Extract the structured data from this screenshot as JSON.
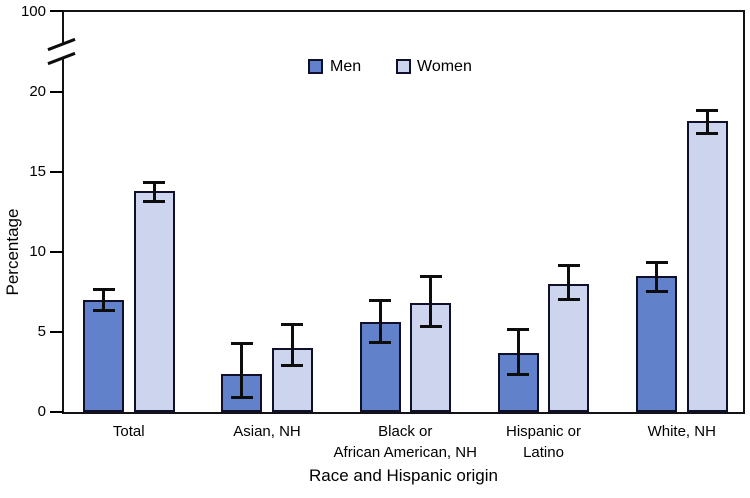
{
  "figure": {
    "y_axis": {
      "title": "Percentage",
      "ticks": [
        "0",
        "5",
        "10",
        "15",
        "20"
      ],
      "break_top_tick": "100"
    },
    "x_axis": {
      "title": "Race and Hispanic origin"
    },
    "legend": {
      "items": [
        "Men",
        "Women"
      ]
    }
  },
  "chart_data": {
    "type": "bar",
    "title": "",
    "xlabel": "Race and Hispanic origin",
    "ylabel": "Percentage",
    "ylim": [
      0,
      20
    ],
    "y_ticks": [
      0,
      5,
      10,
      15,
      20
    ],
    "y_axis_break": {
      "between": [
        20,
        100
      ],
      "top_tick_label": "100"
    },
    "grid": false,
    "legend_position": "top-center",
    "error_bars": true,
    "categories": [
      "Total",
      "Asian, NH",
      "Black or African American, NH",
      "Hispanic or Latino",
      "White, NH"
    ],
    "category_label_lines": [
      [
        "Total"
      ],
      [
        "Asian, NH"
      ],
      [
        "Black or",
        "African American, NH"
      ],
      [
        "Hispanic or",
        "Latino"
      ],
      [
        "White, NH"
      ]
    ],
    "series": [
      {
        "name": "Men",
        "color": "#6182ca",
        "values": [
          7.0,
          2.4,
          5.6,
          3.7,
          8.5
        ],
        "ci_low": [
          6.3,
          0.9,
          4.3,
          2.3,
          7.5
        ],
        "ci_high": [
          7.7,
          4.3,
          7.0,
          5.2,
          9.4
        ]
      },
      {
        "name": "Women",
        "color": "#cdd5ee",
        "values": [
          13.8,
          4.0,
          6.8,
          8.0,
          18.2
        ],
        "ci_low": [
          13.1,
          2.9,
          5.3,
          7.0,
          17.4
        ],
        "ci_high": [
          14.4,
          5.5,
          8.5,
          9.2,
          18.9
        ]
      }
    ],
    "colors": {
      "bar_outline": "#10102a",
      "axis": "#000000",
      "error_bar": "#0d0d0d"
    }
  }
}
